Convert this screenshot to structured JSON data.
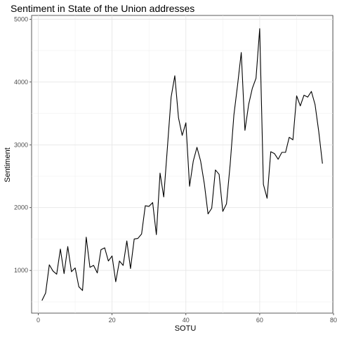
{
  "chart_data": {
    "type": "line",
    "title": "Sentiment in State of the Union addresses",
    "xlabel": "SOTU",
    "ylabel": "Sentiment",
    "xlim": [
      -1.8,
      79.8
    ],
    "ylim": [
      320,
      5060
    ],
    "x_ticks": [
      0,
      20,
      40,
      60,
      80
    ],
    "y_ticks": [
      1000,
      2000,
      3000,
      4000,
      5000
    ],
    "grid": true,
    "series": [
      {
        "x": [
          1,
          2,
          3,
          4,
          5,
          6,
          7,
          8,
          9,
          10,
          11,
          12,
          13,
          14,
          15,
          16,
          17,
          18,
          19,
          20,
          21,
          22,
          23,
          24,
          25,
          26,
          27,
          28,
          29,
          30,
          31,
          32,
          33,
          34,
          35,
          36,
          37,
          38,
          39,
          40,
          41,
          42,
          43,
          44,
          45,
          46,
          47,
          48,
          49,
          50,
          51,
          52,
          53,
          54,
          55,
          56,
          57,
          58,
          59,
          60,
          61,
          62,
          63,
          64,
          65,
          66,
          67,
          68,
          69,
          70,
          71,
          72,
          73,
          74,
          75,
          76,
          77
        ],
        "values": [
          520,
          640,
          1090,
          990,
          940,
          1340,
          950,
          1380,
          980,
          1040,
          740,
          680,
          1530,
          1050,
          1080,
          960,
          1330,
          1360,
          1150,
          1230,
          820,
          1150,
          1080,
          1470,
          1030,
          1500,
          1510,
          1580,
          2030,
          2020,
          2080,
          1570,
          2550,
          2170,
          2960,
          3760,
          4100,
          3430,
          3150,
          3350,
          2340,
          2740,
          2960,
          2740,
          2380,
          1900,
          1990,
          2600,
          2530,
          1940,
          2060,
          2690,
          3470,
          3950,
          4470,
          3230,
          3640,
          3900,
          4060,
          4850,
          2370,
          2150,
          2890,
          2860,
          2770,
          2880,
          2880,
          3120,
          3080,
          3780,
          3620,
          3790,
          3760,
          3850,
          3640,
          3210,
          2700
        ]
      }
    ]
  }
}
